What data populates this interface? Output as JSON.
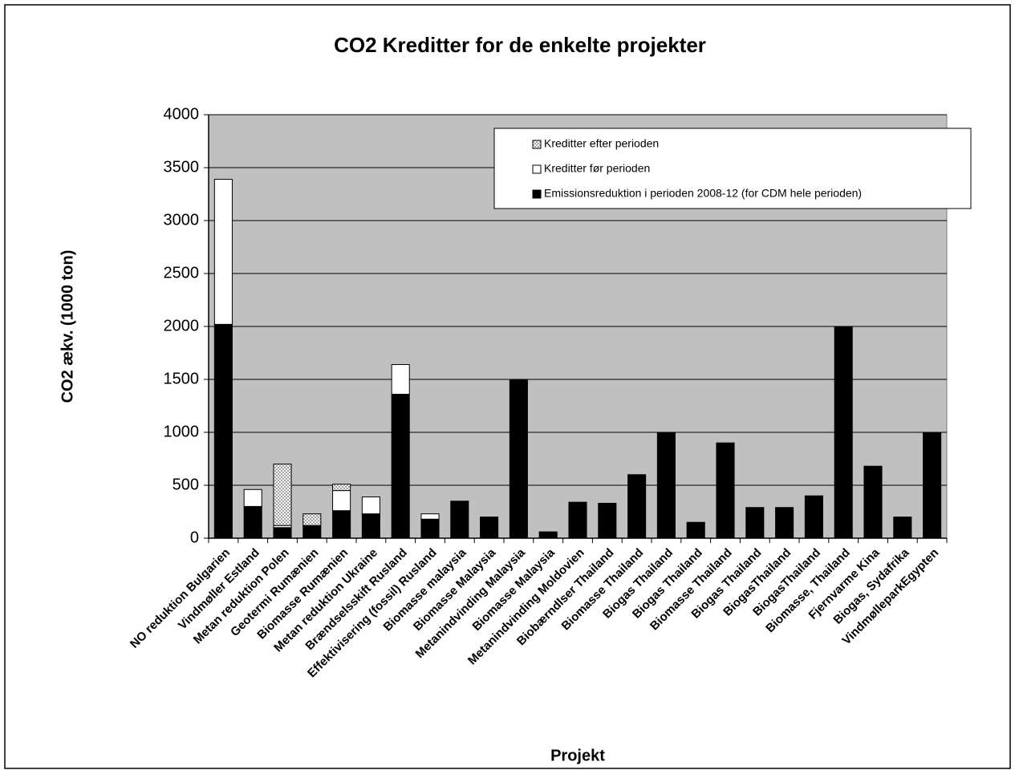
{
  "chart_data": {
    "type": "stacked_bar",
    "title": "CO2 Kreditter for de enkelte projekter",
    "x_label": "Projekt",
    "y_label": "CO2 ækv. (1000 ton)",
    "categories": [
      "NO reduktion Bulgarien",
      "Vindmøller Estland",
      "Metan reduktion Polen",
      "Geotermi Rumænien",
      "Biomasse Rumænien",
      "Metan reduktion Ukraine",
      "Brændselsskift Rusland",
      "Effektivisering (fossil) Rusland",
      "Biomasse malaysia",
      "Biomasse Malaysia",
      "Metanindvinding Malaysia",
      "Biomasse Malaysia",
      "Metanindvinding Moldovien",
      "Biobærndlser Thailand",
      "Biomasse Thailand",
      "Biogas Thailand",
      "Biogas Thailand",
      "Biomasse Thailand",
      "Biogas Thailand",
      "BiogasThailand",
      "BiogasThailand",
      "Biomasse, Thailand",
      "Fjernvarme Kina",
      "Biogas, Sydafrika",
      "VindmølleparkEgypten"
    ],
    "series": [
      {
        "name": "Emissionsreduktion i perioden 2008-12 (for CDM hele perioden)",
        "color": "#000000",
        "values": [
          2020,
          300,
          100,
          120,
          260,
          230,
          1360,
          180,
          350,
          200,
          1500,
          60,
          340,
          330,
          600,
          1000,
          150,
          900,
          290,
          290,
          400,
          2000,
          680,
          200,
          1000
        ]
      },
      {
        "name": "Kreditter før perioden",
        "color": "#ffffff",
        "values": [
          1370,
          160,
          20,
          0,
          190,
          160,
          280,
          50,
          0,
          0,
          0,
          0,
          0,
          0,
          0,
          0,
          0,
          0,
          0,
          0,
          0,
          0,
          0,
          0,
          0
        ]
      },
      {
        "name": "Kreditter efter perioden",
        "color": "#a0a0a0",
        "pattern": "hatch",
        "values": [
          0,
          0,
          580,
          110,
          60,
          0,
          0,
          0,
          0,
          0,
          0,
          0,
          0,
          0,
          0,
          0,
          0,
          0,
          0,
          0,
          0,
          0,
          0,
          0,
          0
        ]
      }
    ],
    "ylim": [
      0,
      4000
    ],
    "yticks": [
      0,
      500,
      1000,
      1500,
      2000,
      2500,
      3000,
      3500,
      4000
    ],
    "grid": true,
    "legend": "upper right",
    "plot_background": "#c0c0c0"
  }
}
